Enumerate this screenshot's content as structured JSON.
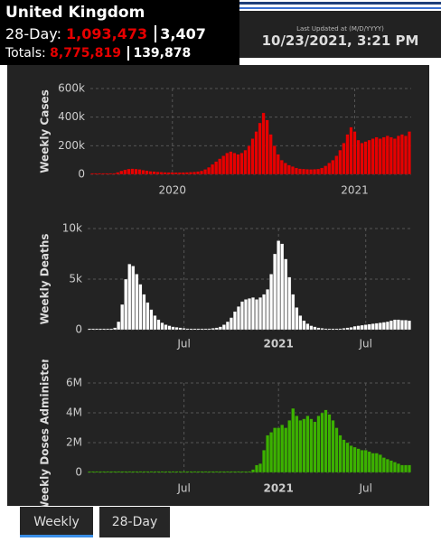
{
  "header": {
    "title": "United Kingdom",
    "period_label": "28-Day:",
    "period_cases": "1,093,473",
    "period_deaths": "3,407",
    "totals_label": "Totals:",
    "total_cases": "8,775,819",
    "total_deaths": "139,878",
    "updated_label": "Last Updated at (M/D/YYYY)",
    "updated": "10/23/2021, 3:21 PM"
  },
  "tabs": [
    "Weekly",
    "28-Day"
  ],
  "chart_data": [
    {
      "type": "bar",
      "y_label": "Weekly Cases",
      "color": "#e60000",
      "grid": true,
      "ylim": [
        0,
        600000
      ],
      "yticks": [
        0,
        {
          "value": 200000,
          "label": "200k"
        },
        {
          "value": 400000,
          "label": "400k"
        },
        {
          "value": 600000,
          "label": "600k"
        }
      ],
      "categories": [
        null,
        null,
        null,
        null,
        null,
        null,
        null,
        null,
        null,
        null,
        null,
        null,
        null,
        null,
        null,
        null,
        null,
        null,
        null,
        null,
        null,
        null,
        "2020",
        null,
        null,
        null,
        null,
        null,
        null,
        null,
        null,
        null,
        null,
        null,
        null,
        null,
        null,
        null,
        null,
        null,
        null,
        null,
        null,
        null,
        null,
        null,
        null,
        null,
        null,
        null,
        null,
        null,
        null,
        null,
        null,
        null,
        null,
        null,
        null,
        null,
        null,
        null,
        null,
        null,
        null,
        null,
        null,
        null,
        null,
        null,
        null,
        null,
        "2021",
        null,
        null,
        null,
        null,
        null,
        null,
        null,
        null,
        null,
        null,
        null,
        null,
        null,
        null,
        null
      ],
      "values": [
        1000,
        1000,
        1500,
        2000,
        3000,
        5000,
        8000,
        15000,
        25000,
        32000,
        38000,
        40000,
        38000,
        35000,
        30000,
        26000,
        22000,
        20000,
        18000,
        16000,
        15000,
        14000,
        14000,
        13000,
        13000,
        14000,
        15000,
        16000,
        18000,
        20000,
        25000,
        35000,
        50000,
        70000,
        90000,
        110000,
        130000,
        150000,
        160000,
        150000,
        140000,
        150000,
        170000,
        200000,
        250000,
        300000,
        360000,
        430000,
        380000,
        280000,
        200000,
        140000,
        100000,
        80000,
        65000,
        55000,
        45000,
        40000,
        38000,
        36000,
        35000,
        36000,
        38000,
        45000,
        60000,
        80000,
        100000,
        130000,
        170000,
        220000,
        280000,
        330000,
        300000,
        240000,
        220000,
        230000,
        240000,
        250000,
        260000,
        250000,
        260000,
        270000,
        260000,
        250000,
        270000,
        280000,
        270000,
        300000
      ]
    },
    {
      "type": "bar",
      "y_label": "Weekly Deaths",
      "color": "#ffffff",
      "grid": true,
      "ylim": [
        0,
        10000
      ],
      "yticks": [
        0,
        {
          "value": 5000,
          "label": "5k"
        },
        {
          "value": 10000,
          "label": "10k"
        }
      ],
      "categories": [
        null,
        null,
        null,
        null,
        null,
        null,
        null,
        null,
        null,
        null,
        null,
        null,
        null,
        null,
        null,
        null,
        null,
        null,
        null,
        null,
        null,
        null,
        null,
        null,
        null,
        null,
        "Jul",
        null,
        null,
        null,
        null,
        null,
        null,
        null,
        null,
        null,
        null,
        null,
        null,
        null,
        null,
        null,
        null,
        null,
        null,
        null,
        null,
        null,
        null,
        null,
        null,
        null,
        "2021",
        null,
        null,
        null,
        null,
        null,
        null,
        null,
        null,
        null,
        null,
        null,
        null,
        null,
        null,
        null,
        null,
        null,
        null,
        null,
        null,
        null,
        null,
        null,
        "Jul",
        null,
        null,
        null,
        null,
        null,
        null,
        null,
        null,
        null,
        null,
        null,
        null
      ],
      "values": [
        0,
        0,
        0,
        0,
        5,
        20,
        50,
        200,
        800,
        2500,
        5000,
        6500,
        6300,
        5500,
        4500,
        3500,
        2700,
        2000,
        1400,
        1000,
        700,
        500,
        400,
        300,
        250,
        200,
        150,
        120,
        100,
        100,
        100,
        100,
        110,
        120,
        150,
        200,
        300,
        500,
        800,
        1200,
        1800,
        2300,
        2800,
        3000,
        3100,
        3200,
        3000,
        3200,
        3500,
        4000,
        5500,
        7500,
        8800,
        8500,
        7000,
        5200,
        3500,
        2200,
        1400,
        900,
        600,
        400,
        300,
        200,
        150,
        120,
        100,
        100,
        100,
        120,
        150,
        200,
        250,
        350,
        400,
        450,
        500,
        550,
        600,
        650,
        700,
        750,
        800,
        900,
        1000,
        1000,
        950,
        950,
        900
      ]
    },
    {
      "type": "bar",
      "y_label": "Weekly Doses Administered",
      "color": "#3cb100",
      "grid": true,
      "ylim": [
        0,
        6000000
      ],
      "yticks": [
        0,
        {
          "value": 2000000,
          "label": "2M"
        },
        {
          "value": 4000000,
          "label": "4M"
        },
        {
          "value": 6000000,
          "label": "6M"
        }
      ],
      "categories": [
        null,
        null,
        null,
        null,
        null,
        null,
        null,
        null,
        null,
        null,
        null,
        null,
        null,
        null,
        null,
        null,
        null,
        null,
        null,
        null,
        null,
        null,
        null,
        null,
        null,
        null,
        "Jul",
        null,
        null,
        null,
        null,
        null,
        null,
        null,
        null,
        null,
        null,
        null,
        null,
        null,
        null,
        null,
        null,
        null,
        null,
        null,
        null,
        null,
        null,
        null,
        null,
        null,
        "2021",
        null,
        null,
        null,
        null,
        null,
        null,
        null,
        null,
        null,
        null,
        null,
        null,
        null,
        null,
        null,
        null,
        null,
        null,
        null,
        null,
        null,
        null,
        null,
        "Jul",
        null,
        null,
        null,
        null,
        null,
        null,
        null,
        null,
        null,
        null,
        null,
        null
      ],
      "values": [
        0,
        0,
        0,
        0,
        0,
        0,
        0,
        0,
        0,
        0,
        0,
        0,
        0,
        0,
        0,
        0,
        0,
        0,
        0,
        0,
        0,
        0,
        0,
        0,
        0,
        0,
        0,
        0,
        0,
        0,
        0,
        0,
        0,
        0,
        0,
        0,
        0,
        0,
        0,
        0,
        0,
        0,
        0,
        0,
        0,
        200000,
        500000,
        600000,
        1500000,
        2500000,
        2700000,
        3000000,
        3000000,
        3200000,
        3000000,
        3500000,
        4300000,
        3800000,
        3500000,
        3600000,
        3800000,
        3600000,
        3400000,
        3800000,
        4000000,
        4200000,
        3900000,
        3500000,
        3000000,
        2500000,
        2200000,
        2000000,
        1800000,
        1700000,
        1600000,
        1500000,
        1500000,
        1400000,
        1300000,
        1300000,
        1200000,
        1000000,
        900000,
        800000,
        700000,
        600000,
        500000,
        500000,
        500000
      ]
    }
  ]
}
